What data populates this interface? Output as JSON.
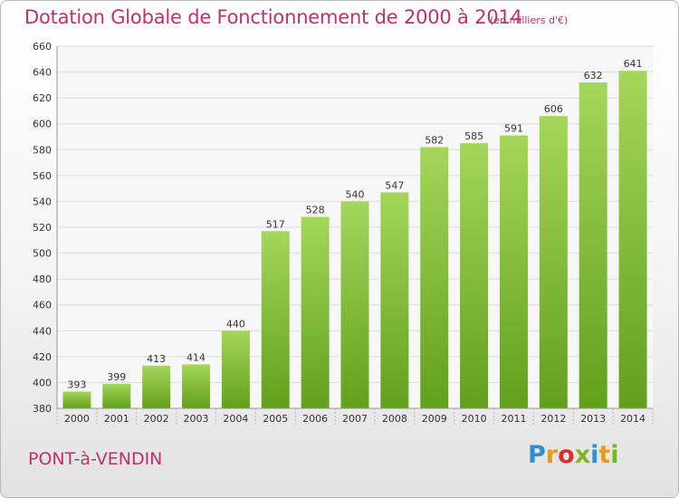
{
  "title": "Dotation Globale de Fonctionnement de 2000 à 2014",
  "subtitle": "(en milliers d'€)",
  "location": "PONT-à-VENDIN",
  "brand": {
    "text": "Proxiti",
    "letters": [
      {
        "char": "P",
        "color": "#2f8fd0"
      },
      {
        "char": "r",
        "color": "#e89a1c"
      },
      {
        "char": "o",
        "color": "#d8312b"
      },
      {
        "char": "x",
        "color": "#7bb628"
      },
      {
        "char": "i",
        "color": "#2f8fd0"
      },
      {
        "char": "t",
        "color": "#e89a1c"
      },
      {
        "char": "i",
        "color": "#7bb628"
      }
    ]
  },
  "colors": {
    "accent": "#c0306a",
    "bar_top": "#a4d65a",
    "bar_bottom": "#62a01c",
    "grid": "#dcdcdc",
    "axis_text": "#333333"
  },
  "chart_data": {
    "type": "bar",
    "categories": [
      "2000",
      "2001",
      "2002",
      "2003",
      "2004",
      "2005",
      "2006",
      "2007",
      "2008",
      "2009",
      "2010",
      "2011",
      "2012",
      "2013",
      "2014"
    ],
    "values": [
      393,
      399,
      413,
      414,
      440,
      517,
      528,
      540,
      547,
      582,
      585,
      591,
      606,
      632,
      641
    ],
    "ylim": [
      380,
      660
    ],
    "yticks": [
      380,
      400,
      420,
      440,
      460,
      480,
      500,
      520,
      540,
      560,
      580,
      600,
      620,
      640,
      660
    ],
    "grid": true,
    "data_labels": true
  }
}
